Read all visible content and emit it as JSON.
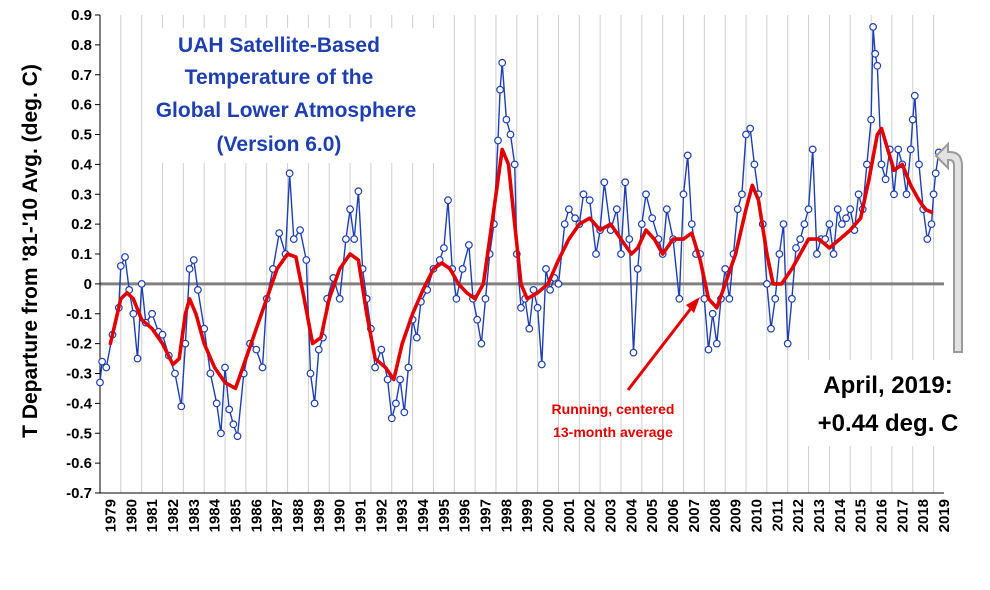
{
  "chart_data": {
    "type": "line",
    "title": [
      "UAH Satellite-Based",
      "Temperature of the",
      "Global Lower Atmosphere",
      "(Version 6.0)"
    ],
    "ylabel": "T Departure from '81-'10 Avg. (deg. C)",
    "xlabel": "",
    "ylim": [
      -0.7,
      0.9
    ],
    "xlim": [
      1979.0,
      2019.5
    ],
    "y_ticks": [
      "0.9",
      "0.8",
      "0.7",
      "0.6",
      "0.5",
      "0.4",
      "0.3",
      "0.2",
      "0.1",
      "0",
      "-0.1",
      "-0.2",
      "-0.3",
      "-0.4",
      "-0.5",
      "-0.6",
      "-0.7"
    ],
    "x_ticks": [
      "1979",
      "1980",
      "1981",
      "1982",
      "1983",
      "1984",
      "1985",
      "1986",
      "1987",
      "1988",
      "1989",
      "1990",
      "1991",
      "1992",
      "1993",
      "1994",
      "1995",
      "1996",
      "1997",
      "1998",
      "1999",
      "2000",
      "2001",
      "2002",
      "2003",
      "2004",
      "2005",
      "2006",
      "2007",
      "2008",
      "2009",
      "2010",
      "2011",
      "2012",
      "2013",
      "2014",
      "2015",
      "2016",
      "2017",
      "2018",
      "2019"
    ],
    "grid": "vertical",
    "colors": {
      "monthly": "#1f3fb0",
      "average": "#e00000",
      "zero_line": "#808080",
      "title": "#1f3fb0"
    },
    "annotations": {
      "average_label": [
        "Running, centered",
        "13-month average"
      ],
      "latest_label": [
        "April, 2019:",
        "+0.44 deg. C"
      ]
    },
    "series": [
      {
        "kind": "monthly",
        "x_start": 1979.0,
        "step": 0.0833333,
        "anchors": [
          [
            1979.0,
            -0.33
          ],
          [
            1979.1,
            -0.26
          ],
          [
            1979.3,
            -0.28
          ],
          [
            1979.6,
            -0.17
          ],
          [
            1979.9,
            -0.08
          ],
          [
            1980.0,
            0.06
          ],
          [
            1980.2,
            0.09
          ],
          [
            1980.4,
            -0.02
          ],
          [
            1980.6,
            -0.1
          ],
          [
            1980.8,
            -0.25
          ],
          [
            1981.0,
            0.0
          ],
          [
            1981.2,
            -0.13
          ],
          [
            1981.5,
            -0.1
          ],
          [
            1981.8,
            -0.16
          ],
          [
            1982.0,
            -0.17
          ],
          [
            1982.3,
            -0.24
          ],
          [
            1982.6,
            -0.3
          ],
          [
            1982.9,
            -0.41
          ],
          [
            1983.1,
            -0.2
          ],
          [
            1983.3,
            0.05
          ],
          [
            1983.5,
            0.08
          ],
          [
            1983.7,
            -0.02
          ],
          [
            1984.0,
            -0.15
          ],
          [
            1984.3,
            -0.3
          ],
          [
            1984.6,
            -0.4
          ],
          [
            1984.8,
            -0.5
          ],
          [
            1985.0,
            -0.28
          ],
          [
            1985.2,
            -0.42
          ],
          [
            1985.4,
            -0.47
          ],
          [
            1985.6,
            -0.51
          ],
          [
            1985.9,
            -0.3
          ],
          [
            1986.2,
            -0.2
          ],
          [
            1986.5,
            -0.22
          ],
          [
            1986.8,
            -0.28
          ],
          [
            1987.0,
            -0.05
          ],
          [
            1987.3,
            0.05
          ],
          [
            1987.6,
            0.17
          ],
          [
            1987.9,
            0.1
          ],
          [
            1988.1,
            0.37
          ],
          [
            1988.3,
            0.15
          ],
          [
            1988.6,
            0.18
          ],
          [
            1988.9,
            0.08
          ],
          [
            1989.1,
            -0.3
          ],
          [
            1989.3,
            -0.4
          ],
          [
            1989.5,
            -0.22
          ],
          [
            1989.7,
            -0.18
          ],
          [
            1989.9,
            -0.05
          ],
          [
            1990.2,
            0.02
          ],
          [
            1990.5,
            -0.05
          ],
          [
            1990.8,
            0.15
          ],
          [
            1991.0,
            0.25
          ],
          [
            1991.2,
            0.15
          ],
          [
            1991.4,
            0.31
          ],
          [
            1991.6,
            0.05
          ],
          [
            1991.8,
            -0.05
          ],
          [
            1992.0,
            -0.15
          ],
          [
            1992.2,
            -0.28
          ],
          [
            1992.5,
            -0.22
          ],
          [
            1992.8,
            -0.32
          ],
          [
            1993.0,
            -0.45
          ],
          [
            1993.2,
            -0.4
          ],
          [
            1993.4,
            -0.32
          ],
          [
            1993.6,
            -0.43
          ],
          [
            1993.8,
            -0.28
          ],
          [
            1994.0,
            -0.12
          ],
          [
            1994.2,
            -0.18
          ],
          [
            1994.4,
            -0.06
          ],
          [
            1994.7,
            -0.02
          ],
          [
            1995.0,
            0.05
          ],
          [
            1995.3,
            0.08
          ],
          [
            1995.5,
            0.12
          ],
          [
            1995.7,
            0.28
          ],
          [
            1995.9,
            0.05
          ],
          [
            1996.1,
            -0.05
          ],
          [
            1996.4,
            0.05
          ],
          [
            1996.7,
            0.13
          ],
          [
            1996.9,
            -0.05
          ],
          [
            1997.1,
            -0.12
          ],
          [
            1997.3,
            -0.2
          ],
          [
            1997.5,
            -0.05
          ],
          [
            1997.7,
            0.1
          ],
          [
            1997.9,
            0.2
          ],
          [
            1998.1,
            0.48
          ],
          [
            1998.2,
            0.65
          ],
          [
            1998.3,
            0.74
          ],
          [
            1998.5,
            0.55
          ],
          [
            1998.7,
            0.5
          ],
          [
            1998.9,
            0.4
          ],
          [
            1999.0,
            0.1
          ],
          [
            1999.2,
            -0.08
          ],
          [
            1999.4,
            -0.05
          ],
          [
            1999.6,
            -0.15
          ],
          [
            1999.8,
            -0.02
          ],
          [
            2000.0,
            -0.08
          ],
          [
            2000.2,
            -0.27
          ],
          [
            2000.4,
            0.05
          ],
          [
            2000.6,
            -0.02
          ],
          [
            2000.8,
            0.02
          ],
          [
            2001.0,
            0.0
          ],
          [
            2001.3,
            0.2
          ],
          [
            2001.5,
            0.25
          ],
          [
            2001.8,
            0.22
          ],
          [
            2002.0,
            0.2
          ],
          [
            2002.2,
            0.3
          ],
          [
            2002.5,
            0.28
          ],
          [
            2002.8,
            0.1
          ],
          [
            2003.0,
            0.18
          ],
          [
            2003.2,
            0.34
          ],
          [
            2003.5,
            0.18
          ],
          [
            2003.8,
            0.25
          ],
          [
            2004.0,
            0.1
          ],
          [
            2004.2,
            0.34
          ],
          [
            2004.4,
            0.15
          ],
          [
            2004.6,
            -0.23
          ],
          [
            2004.8,
            0.05
          ],
          [
            2005.0,
            0.2
          ],
          [
            2005.2,
            0.3
          ],
          [
            2005.5,
            0.22
          ],
          [
            2005.8,
            0.15
          ],
          [
            2006.0,
            0.1
          ],
          [
            2006.2,
            0.25
          ],
          [
            2006.5,
            0.15
          ],
          [
            2006.8,
            -0.05
          ],
          [
            2007.0,
            0.3
          ],
          [
            2007.2,
            0.43
          ],
          [
            2007.4,
            0.2
          ],
          [
            2007.6,
            0.1
          ],
          [
            2007.8,
            0.1
          ],
          [
            2008.0,
            -0.05
          ],
          [
            2008.2,
            -0.22
          ],
          [
            2008.4,
            -0.1
          ],
          [
            2008.6,
            -0.2
          ],
          [
            2008.8,
            -0.05
          ],
          [
            2009.0,
            0.05
          ],
          [
            2009.2,
            -0.05
          ],
          [
            2009.4,
            0.1
          ],
          [
            2009.6,
            0.25
          ],
          [
            2009.8,
            0.3
          ],
          [
            2010.0,
            0.5
          ],
          [
            2010.2,
            0.52
          ],
          [
            2010.4,
            0.4
          ],
          [
            2010.6,
            0.3
          ],
          [
            2010.8,
            0.2
          ],
          [
            2011.0,
            0.0
          ],
          [
            2011.2,
            -0.15
          ],
          [
            2011.4,
            -0.05
          ],
          [
            2011.6,
            0.1
          ],
          [
            2011.8,
            0.2
          ],
          [
            2012.0,
            -0.2
          ],
          [
            2012.2,
            -0.05
          ],
          [
            2012.4,
            0.12
          ],
          [
            2012.6,
            0.15
          ],
          [
            2012.8,
            0.2
          ],
          [
            2013.0,
            0.25
          ],
          [
            2013.2,
            0.45
          ],
          [
            2013.4,
            0.1
          ],
          [
            2013.6,
            0.15
          ],
          [
            2013.8,
            0.15
          ],
          [
            2014.0,
            0.2
          ],
          [
            2014.2,
            0.1
          ],
          [
            2014.4,
            0.25
          ],
          [
            2014.6,
            0.2
          ],
          [
            2014.8,
            0.22
          ],
          [
            2015.0,
            0.25
          ],
          [
            2015.2,
            0.18
          ],
          [
            2015.4,
            0.3
          ],
          [
            2015.6,
            0.25
          ],
          [
            2015.8,
            0.4
          ],
          [
            2016.0,
            0.55
          ],
          [
            2016.1,
            0.86
          ],
          [
            2016.2,
            0.77
          ],
          [
            2016.3,
            0.73
          ],
          [
            2016.5,
            0.4
          ],
          [
            2016.7,
            0.35
          ],
          [
            2016.9,
            0.45
          ],
          [
            2017.1,
            0.3
          ],
          [
            2017.3,
            0.45
          ],
          [
            2017.5,
            0.4
          ],
          [
            2017.7,
            0.3
          ],
          [
            2017.9,
            0.45
          ],
          [
            2018.0,
            0.55
          ],
          [
            2018.1,
            0.63
          ],
          [
            2018.3,
            0.4
          ],
          [
            2018.5,
            0.25
          ],
          [
            2018.7,
            0.15
          ],
          [
            2018.9,
            0.2
          ],
          [
            2019.0,
            0.3
          ],
          [
            2019.1,
            0.37
          ],
          [
            2019.25,
            0.44
          ]
        ]
      },
      {
        "kind": "running_average",
        "anchors": [
          [
            1979.5,
            -0.2
          ],
          [
            1980.0,
            -0.05
          ],
          [
            1980.3,
            -0.03
          ],
          [
            1980.6,
            -0.05
          ],
          [
            1981.0,
            -0.12
          ],
          [
            1981.5,
            -0.15
          ],
          [
            1982.0,
            -0.2
          ],
          [
            1982.5,
            -0.27
          ],
          [
            1982.8,
            -0.25
          ],
          [
            1983.1,
            -0.1
          ],
          [
            1983.3,
            -0.05
          ],
          [
            1983.6,
            -0.1
          ],
          [
            1984.0,
            -0.2
          ],
          [
            1984.5,
            -0.28
          ],
          [
            1985.0,
            -0.33
          ],
          [
            1985.5,
            -0.35
          ],
          [
            1986.0,
            -0.25
          ],
          [
            1986.5,
            -0.15
          ],
          [
            1987.0,
            -0.05
          ],
          [
            1987.5,
            0.05
          ],
          [
            1988.0,
            0.1
          ],
          [
            1988.4,
            0.09
          ],
          [
            1988.8,
            -0.05
          ],
          [
            1989.2,
            -0.2
          ],
          [
            1989.6,
            -0.18
          ],
          [
            1990.0,
            -0.05
          ],
          [
            1990.5,
            0.05
          ],
          [
            1991.0,
            0.1
          ],
          [
            1991.4,
            0.08
          ],
          [
            1991.8,
            -0.1
          ],
          [
            1992.2,
            -0.25
          ],
          [
            1992.7,
            -0.28
          ],
          [
            1993.1,
            -0.32
          ],
          [
            1993.5,
            -0.2
          ],
          [
            1994.0,
            -0.1
          ],
          [
            1994.5,
            -0.02
          ],
          [
            1995.0,
            0.05
          ],
          [
            1995.4,
            0.07
          ],
          [
            1995.8,
            0.05
          ],
          [
            1996.2,
            0.0
          ],
          [
            1996.6,
            -0.03
          ],
          [
            1997.0,
            -0.05
          ],
          [
            1997.4,
            0.0
          ],
          [
            1997.7,
            0.15
          ],
          [
            1998.0,
            0.3
          ],
          [
            1998.3,
            0.45
          ],
          [
            1998.6,
            0.4
          ],
          [
            1998.9,
            0.2
          ],
          [
            1999.2,
            0.0
          ],
          [
            1999.5,
            -0.05
          ],
          [
            2000.0,
            -0.03
          ],
          [
            2000.5,
            0.0
          ],
          [
            2001.0,
            0.08
          ],
          [
            2001.5,
            0.15
          ],
          [
            2002.0,
            0.2
          ],
          [
            2002.5,
            0.22
          ],
          [
            2003.0,
            0.18
          ],
          [
            2003.5,
            0.2
          ],
          [
            2004.0,
            0.15
          ],
          [
            2004.5,
            0.1
          ],
          [
            2004.8,
            0.12
          ],
          [
            2005.2,
            0.18
          ],
          [
            2005.6,
            0.15
          ],
          [
            2006.0,
            0.1
          ],
          [
            2006.5,
            0.15
          ],
          [
            2007.0,
            0.15
          ],
          [
            2007.4,
            0.17
          ],
          [
            2007.8,
            0.08
          ],
          [
            2008.2,
            -0.05
          ],
          [
            2008.6,
            -0.08
          ],
          [
            2009.0,
            0.0
          ],
          [
            2009.5,
            0.1
          ],
          [
            2010.0,
            0.25
          ],
          [
            2010.3,
            0.33
          ],
          [
            2010.6,
            0.28
          ],
          [
            2011.0,
            0.1
          ],
          [
            2011.3,
            0.0
          ],
          [
            2011.7,
            0.0
          ],
          [
            2012.2,
            0.05
          ],
          [
            2012.6,
            0.1
          ],
          [
            2013.0,
            0.15
          ],
          [
            2013.5,
            0.15
          ],
          [
            2014.0,
            0.12
          ],
          [
            2014.5,
            0.15
          ],
          [
            2015.0,
            0.18
          ],
          [
            2015.5,
            0.22
          ],
          [
            2015.9,
            0.35
          ],
          [
            2016.3,
            0.5
          ],
          [
            2016.5,
            0.52
          ],
          [
            2016.8,
            0.45
          ],
          [
            2017.1,
            0.38
          ],
          [
            2017.5,
            0.4
          ],
          [
            2017.9,
            0.33
          ],
          [
            2018.3,
            0.28
          ],
          [
            2018.6,
            0.25
          ],
          [
            2018.9,
            0.24
          ]
        ]
      }
    ]
  }
}
